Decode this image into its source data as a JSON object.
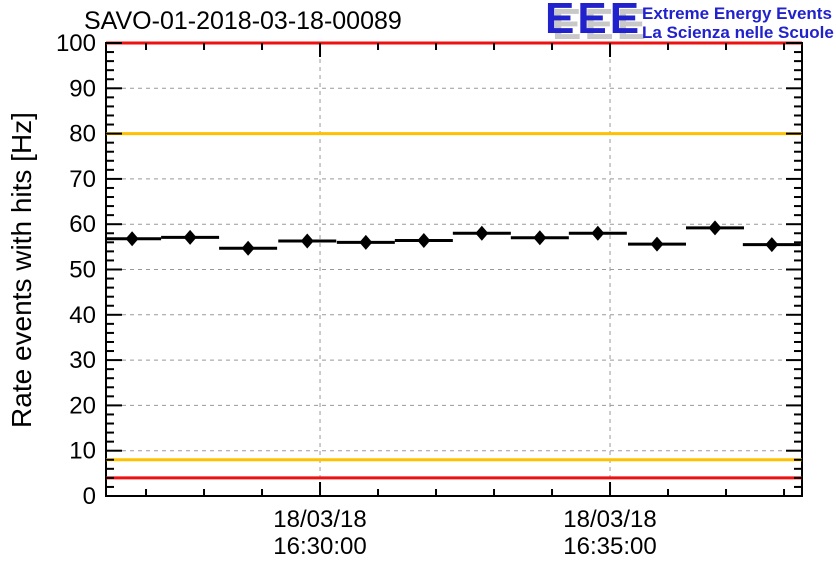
{
  "header": {
    "title": "SAVO-01-2018-03-18-00089",
    "logo": {
      "acronym": "EEE",
      "line1": "Extreme Energy Events",
      "line2": "La Scienza nelle Scuole",
      "text_color": "#2222cc",
      "shadow_color": "#c8c8c8"
    }
  },
  "chart_data": {
    "type": "scatter",
    "title": "SAVO-01-2018-03-18-00089",
    "ylabel": "Rate events with hits [Hz]",
    "xlabel": "",
    "ylim": [
      0,
      100
    ],
    "yticks": [
      0,
      10,
      20,
      30,
      40,
      50,
      60,
      70,
      80,
      90,
      100
    ],
    "y_minor_step": 2,
    "xlim_minutes_from_1630": [
      -3.69,
      8.31
    ],
    "x_minor_step_minutes": 1,
    "xticks_major": [
      {
        "minutes_from_1630": 0,
        "date_label": "18/03/18",
        "time_label": "16:30:00"
      },
      {
        "minutes_from_1630": 5,
        "date_label": "18/03/18",
        "time_label": "16:35:00"
      }
    ],
    "grid": {
      "show": true,
      "style": "dashed",
      "color": "#999999"
    },
    "frame_color": "#000000",
    "threshold_lines": [
      {
        "name": "alarm-high",
        "value_hz": 100,
        "color": "#ee1111"
      },
      {
        "name": "warning-high",
        "value_hz": 80,
        "color": "#ffc000"
      },
      {
        "name": "warning-low",
        "value_hz": 8,
        "color": "#ffc000"
      },
      {
        "name": "alarm-low",
        "value_hz": 4,
        "color": "#ee1111"
      }
    ],
    "series": [
      {
        "name": "rate-events-with-hits",
        "marker": "filled-diamond",
        "color": "#000000",
        "x_error_minutes": 0.5,
        "points": [
          {
            "time": "16:26:46",
            "minutes_from_1630": -3.24,
            "rate_hz": 56.8
          },
          {
            "time": "16:27:46",
            "minutes_from_1630": -2.24,
            "rate_hz": 57.1
          },
          {
            "time": "16:28:46",
            "minutes_from_1630": -1.24,
            "rate_hz": 54.7
          },
          {
            "time": "16:29:47",
            "minutes_from_1630": -0.22,
            "rate_hz": 56.3
          },
          {
            "time": "16:30:48",
            "minutes_from_1630": 0.79,
            "rate_hz": 56.0
          },
          {
            "time": "16:31:48",
            "minutes_from_1630": 1.79,
            "rate_hz": 56.4
          },
          {
            "time": "16:32:48",
            "minutes_from_1630": 2.79,
            "rate_hz": 58.0
          },
          {
            "time": "16:33:48",
            "minutes_from_1630": 3.79,
            "rate_hz": 57.0
          },
          {
            "time": "16:34:48",
            "minutes_from_1630": 4.79,
            "rate_hz": 58.0
          },
          {
            "time": "16:35:49",
            "minutes_from_1630": 5.81,
            "rate_hz": 55.6
          },
          {
            "time": "16:36:49",
            "minutes_from_1630": 6.81,
            "rate_hz": 59.2
          },
          {
            "time": "16:37:48",
            "minutes_from_1630": 7.79,
            "rate_hz": 55.5
          }
        ]
      }
    ]
  }
}
